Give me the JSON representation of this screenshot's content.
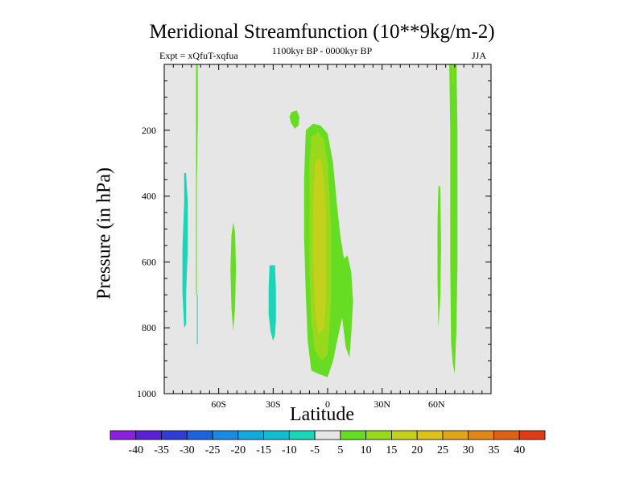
{
  "chart_data": {
    "type": "heatmap",
    "title": "Meridional Streamfunction (10**9kg/m-2)",
    "subtitle_left": "Expt = xQfuT-xqfua",
    "subtitle_center": "1100kyr BP - 0000kyr BP",
    "subtitle_right": "JJA",
    "xlabel": "Latitude",
    "ylabel": "Pressure (in hPa)",
    "xlim": [
      -90,
      90
    ],
    "ylim": [
      1000,
      0
    ],
    "x_ticks": [
      {
        "value": -60,
        "label": "60S"
      },
      {
        "value": -30,
        "label": "30S"
      },
      {
        "value": 0,
        "label": "0"
      },
      {
        "value": 30,
        "label": "30N"
      },
      {
        "value": 60,
        "label": "60N"
      }
    ],
    "y_ticks": [
      {
        "value": 200,
        "label": "200"
      },
      {
        "value": 400,
        "label": "400"
      },
      {
        "value": 600,
        "label": "600"
      },
      {
        "value": 800,
        "label": "800"
      },
      {
        "value": 1000,
        "label": "1000"
      }
    ],
    "colorbar": {
      "levels": [
        "-40",
        "-35",
        "-30",
        "-25",
        "-20",
        "-15",
        "-10",
        "-5",
        "5",
        "10",
        "15",
        "20",
        "25",
        "30",
        "35",
        "40"
      ],
      "colors": [
        "#8a1fe0",
        "#5a22d6",
        "#2f3dd8",
        "#1d63e0",
        "#1a8be0",
        "#12a9dc",
        "#10bfcf",
        "#18d6b6",
        "#e6e6e6",
        "#66dd22",
        "#9ad81c",
        "#c4d11c",
        "#dcc21a",
        "#dfa617",
        "#e08716",
        "#e06116",
        "#e03a16"
      ]
    },
    "background_color": "#e6e6e6",
    "regions": [
      {
        "name": "neg-band-78S",
        "level": "-10",
        "color": "#18d6b6",
        "outline": [
          [
            -79,
            330
          ],
          [
            -78,
            330
          ],
          [
            -77,
            420
          ],
          [
            -77,
            560
          ],
          [
            -78,
            700
          ],
          [
            -78,
            790
          ],
          [
            -79,
            800
          ],
          [
            -80,
            690
          ],
          [
            -80,
            560
          ],
          [
            -79,
            420
          ]
        ]
      },
      {
        "name": "neg-strip-72S",
        "level": "-10",
        "color": "#18d6b6",
        "outline": [
          [
            -72,
            700
          ],
          [
            -71.5,
            700
          ],
          [
            -71.5,
            850
          ],
          [
            -72,
            850
          ]
        ]
      },
      {
        "name": "pos-strip-71S",
        "level": "5",
        "color": "#66dd22",
        "outline": [
          [
            -72.5,
            0
          ],
          [
            -71.5,
            0
          ],
          [
            -71.5,
            180
          ],
          [
            -72,
            360
          ],
          [
            -72,
            700
          ],
          [
            -72.5,
            700
          ]
        ]
      },
      {
        "name": "pos-blob-52S",
        "level": "5",
        "color": "#66dd22",
        "outline": [
          [
            -52,
            480
          ],
          [
            -51,
            510
          ],
          [
            -50.5,
            620
          ],
          [
            -51,
            740
          ],
          [
            -52,
            810
          ],
          [
            -53,
            740
          ],
          [
            -53.5,
            620
          ],
          [
            -53,
            520
          ]
        ]
      },
      {
        "name": "neg-blob-30S",
        "level": "-10",
        "color": "#18d6b6",
        "outline": [
          [
            -32,
            610
          ],
          [
            -29,
            610
          ],
          [
            -28.5,
            680
          ],
          [
            -28.5,
            780
          ],
          [
            -29,
            820
          ],
          [
            -30,
            840
          ],
          [
            -31.5,
            810
          ],
          [
            -32.5,
            760
          ],
          [
            -32.5,
            680
          ]
        ]
      },
      {
        "name": "pos-blob-18S",
        "level": "5",
        "color": "#66dd22",
        "outline": [
          [
            -20,
            145
          ],
          [
            -17,
            140
          ],
          [
            -15.5,
            160
          ],
          [
            -16,
            185
          ],
          [
            -18,
            195
          ],
          [
            -20,
            180
          ],
          [
            -21,
            160
          ]
        ]
      },
      {
        "name": "pos-main-5",
        "level": "5",
        "color": "#66dd22",
        "outline": [
          [
            -12,
            200
          ],
          [
            -8,
            180
          ],
          [
            -4,
            185
          ],
          [
            0,
            210
          ],
          [
            3,
            300
          ],
          [
            5,
            420
          ],
          [
            7,
            520
          ],
          [
            9,
            590
          ],
          [
            11,
            580
          ],
          [
            13,
            630
          ],
          [
            14,
            720
          ],
          [
            13,
            820
          ],
          [
            12,
            890
          ],
          [
            10,
            860
          ],
          [
            8,
            770
          ],
          [
            6,
            820
          ],
          [
            3,
            900
          ],
          [
            0,
            950
          ],
          [
            -5,
            940
          ],
          [
            -9,
            930
          ],
          [
            -11,
            840
          ],
          [
            -12,
            700
          ],
          [
            -13,
            520
          ],
          [
            -13,
            350
          ]
        ]
      },
      {
        "name": "pos-main-10",
        "level": "10",
        "color": "#9ad81c",
        "outline": [
          [
            -9,
            220
          ],
          [
            -5,
            205
          ],
          [
            -2,
            230
          ],
          [
            0,
            300
          ],
          [
            1,
            400
          ],
          [
            2,
            500
          ],
          [
            2,
            600
          ],
          [
            2,
            700
          ],
          [
            1,
            800
          ],
          [
            0,
            880
          ],
          [
            -3,
            900
          ],
          [
            -7,
            870
          ],
          [
            -9,
            780
          ],
          [
            -10,
            620
          ],
          [
            -10,
            420
          ],
          [
            -10,
            300
          ]
        ]
      },
      {
        "name": "pos-main-15",
        "level": "15",
        "color": "#c4d11c",
        "outline": [
          [
            -7,
            300
          ],
          [
            -4,
            280
          ],
          [
            -2,
            350
          ],
          [
            -1,
            450
          ],
          [
            -1,
            600
          ],
          [
            -1,
            720
          ],
          [
            -2,
            800
          ],
          [
            -5,
            820
          ],
          [
            -7,
            740
          ],
          [
            -8,
            600
          ],
          [
            -8,
            450
          ]
        ]
      },
      {
        "name": "pos-band-61N",
        "level": "5",
        "color": "#66dd22",
        "outline": [
          [
            61,
            370
          ],
          [
            62,
            370
          ],
          [
            62.5,
            550
          ],
          [
            62,
            720
          ],
          [
            61,
            800
          ],
          [
            60.5,
            650
          ],
          [
            60.5,
            480
          ]
        ]
      },
      {
        "name": "pos-band-70N",
        "level": "5",
        "color": "#66dd22",
        "outline": [
          [
            67,
            0
          ],
          [
            71,
            0
          ],
          [
            71.5,
            200
          ],
          [
            71.5,
            600
          ],
          [
            71,
            800
          ],
          [
            70,
            940
          ],
          [
            69,
            910
          ],
          [
            68,
            850
          ],
          [
            67.5,
            600
          ],
          [
            67.5,
            200
          ]
        ]
      },
      {
        "name": "pos-core-69N",
        "level": "10",
        "color": "#9ad81c",
        "outline": [
          [
            68.7,
            0
          ],
          [
            69.3,
            0
          ],
          [
            69.3,
            60
          ],
          [
            68.7,
            60
          ]
        ]
      }
    ]
  }
}
